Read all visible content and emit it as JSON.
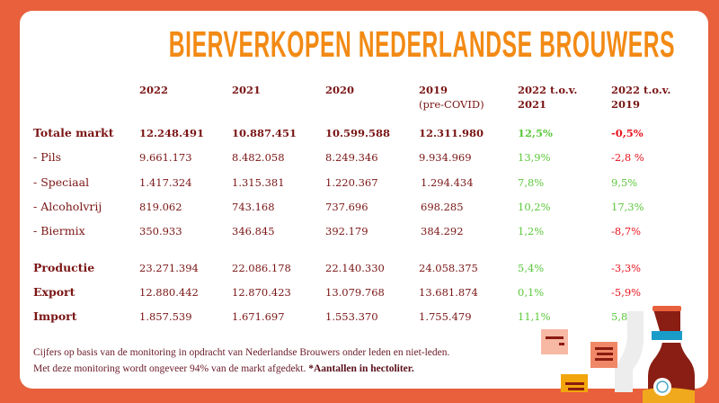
{
  "title": "BIERVERKOPEN NEDERLANDSE BROUWERS",
  "columns": [
    {
      "label": "2022",
      "sub": ""
    },
    {
      "label": "2021",
      "sub": ""
    },
    {
      "label": "2020",
      "sub": ""
    },
    {
      "label": "2019",
      "sub": "(pre-COVID)"
    },
    {
      "label": "2022 t.o.v.",
      "sub": "2021"
    },
    {
      "label": "2022 t.o.v.",
      "sub": "2019"
    }
  ],
  "rows": [
    {
      "label": "Totale markt",
      "bold": true,
      "values": [
        "12.248.491",
        "10.887.451",
        "10.599.588",
        "12.311.980"
      ],
      "pct": [
        {
          "v": "12,5%",
          "trend": "up"
        },
        {
          "v": "-0,5%",
          "trend": "down"
        }
      ]
    },
    {
      "label": "- Pils",
      "bold": false,
      "values": [
        "9.661.173",
        "8.482.058",
        "8.249.346",
        "9.934.969"
      ],
      "pct": [
        {
          "v": "13,9%",
          "trend": "up"
        },
        {
          "v": "-2,8 %",
          "trend": "down"
        }
      ]
    },
    {
      "label": "- Speciaal",
      "bold": false,
      "values": [
        "1.417.324",
        "1.315.381",
        "1.220.367",
        "1.294.434"
      ],
      "pct": [
        {
          "v": "7,8%",
          "trend": "up"
        },
        {
          "v": "9,5%",
          "trend": "up"
        }
      ]
    },
    {
      "label": "- Alcoholvrij",
      "bold": false,
      "values": [
        "819.062",
        "743.168",
        "737.696",
        "698.285"
      ],
      "pct": [
        {
          "v": "10,2%",
          "trend": "up"
        },
        {
          "v": "17,3%",
          "trend": "up"
        }
      ]
    },
    {
      "label": "- Biermix",
      "bold": false,
      "values": [
        "350.933",
        "346.845",
        "392.179",
        "384.292"
      ],
      "pct": [
        {
          "v": "1,2%",
          "trend": "up"
        },
        {
          "v": "-8,7%",
          "trend": "down"
        }
      ]
    },
    {
      "label": "Productie",
      "bold": false,
      "labelBold": true,
      "values": [
        "23.271.394",
        "22.086.178",
        "22.140.330",
        "24.058.375"
      ],
      "pct": [
        {
          "v": "5,4%",
          "trend": "up"
        },
        {
          "v": "-3,3%",
          "trend": "down"
        }
      ]
    },
    {
      "label": "Export",
      "bold": false,
      "labelBold": true,
      "values": [
        "12.880.442",
        "12.870.423",
        "13.079.768",
        "13.681.874"
      ],
      "pct": [
        {
          "v": "0,1%",
          "trend": "up"
        },
        {
          "v": "-5,9%",
          "trend": "down"
        }
      ]
    },
    {
      "label": "Import",
      "bold": false,
      "labelBold": true,
      "values": [
        "1.857.539",
        "1.671.697",
        "1.553.370",
        "1.755.479"
      ],
      "pct": [
        {
          "v": "11,1%",
          "trend": "up"
        },
        {
          "v": "5,8%",
          "trend": "up"
        }
      ]
    }
  ],
  "footnote": {
    "line1": "Cijfers op basis van de monitoring in opdracht van Nederlandse Brouwers onder leden en niet-leden.",
    "line2": "Met deze monitoring wordt ongeveer 94% van de markt afgedekt.",
    "line2_bold": "*Aantallen in hectoliter."
  },
  "colors": {
    "background": "#E8603C",
    "title": "#F28A14",
    "text": "#7A1515",
    "positive": "#5CC83C",
    "negative": "#E8141E"
  },
  "illustration": {
    "icon": "beer-bottle-icon"
  }
}
